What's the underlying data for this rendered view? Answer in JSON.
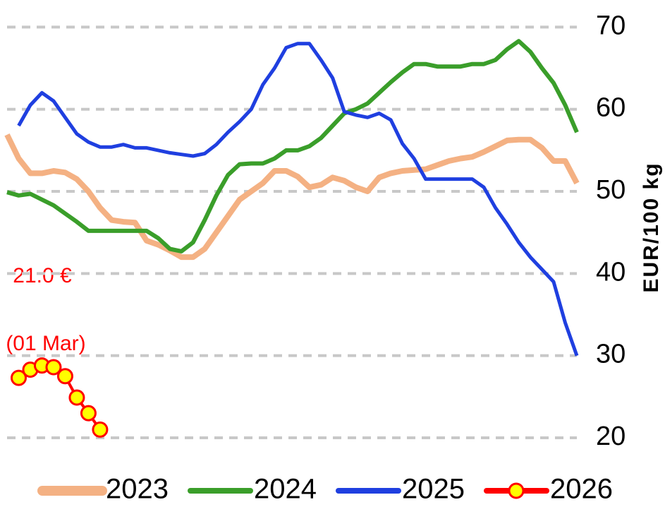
{
  "chart_data": {
    "type": "line",
    "y_label": "EUR/100 kg",
    "categories": [
      null,
      null,
      null,
      null,
      null,
      null,
      null,
      null,
      null,
      null,
      null,
      null,
      null,
      null,
      null,
      null,
      null,
      null,
      null,
      null,
      null,
      null,
      null,
      null,
      null,
      null,
      null,
      null,
      null,
      null,
      null,
      null,
      null,
      null,
      null,
      null,
      null,
      null,
      null,
      null,
      null,
      null,
      null,
      null,
      null,
      null,
      null,
      null,
      null,
      null
    ],
    "ylim": [
      20,
      73.3
    ],
    "yticks": [
      20,
      30,
      40,
      50,
      60,
      70
    ],
    "grid": true,
    "legend": "bottom",
    "annotations": [
      "21.0 €",
      "(01 Mar)"
    ],
    "series": [
      {
        "name": "2023",
        "color": "#f4b183",
        "values": [
          56.9,
          54,
          52.2,
          52.2,
          52.5,
          52.3,
          51.5,
          50,
          48,
          46.5,
          46.3,
          46.2,
          44,
          43.5,
          42.8,
          42,
          42,
          43,
          45,
          47,
          49,
          50,
          51,
          52.5,
          52.5,
          51.8,
          50.5,
          50.8,
          51.7,
          51.3,
          50.5,
          50,
          51.7,
          52.2,
          52.5,
          52.6,
          52.7,
          53.2,
          53.7,
          54,
          54.2,
          54.8,
          55.5,
          56.2,
          56.3,
          56.3,
          55.3,
          53.7,
          53.7,
          51
        ]
      },
      {
        "name": "2024",
        "color": "#3a9e2a",
        "values": [
          49.9,
          49.5,
          49.7,
          49,
          48.3,
          47.3,
          46.3,
          45.2,
          45.2,
          45.2,
          45.2,
          45.2,
          45.2,
          44.3,
          43,
          42.7,
          43.8,
          46.5,
          49.5,
          52,
          53.3,
          53.4,
          53.4,
          54,
          55,
          55,
          55.5,
          56.5,
          58,
          59.5,
          60,
          60.7,
          62,
          63.3,
          64.5,
          65.5,
          65.5,
          65.2,
          65.2,
          65.2,
          65.5,
          65.5,
          66,
          67.3,
          68.3,
          67,
          65,
          63.2,
          60.5,
          57.2
        ]
      },
      {
        "name": "2025",
        "color": "#1f3fe0",
        "values": [
          null,
          58,
          60.5,
          62,
          61,
          59,
          57,
          56,
          55.4,
          55.4,
          55.7,
          55.3,
          55.3,
          55,
          54.7,
          54.5,
          54.3,
          54.6,
          55.7,
          57.2,
          58.5,
          60,
          63,
          65,
          67.5,
          68,
          68,
          66,
          63.8,
          59.7,
          59.3,
          59,
          59.5,
          58.7,
          55.8,
          54,
          51.5,
          51.5,
          51.5,
          51.5,
          51.5,
          50.5,
          48,
          46,
          43.8,
          42,
          40.5,
          39,
          34,
          30
        ]
      },
      {
        "name": "2026",
        "color": "#ff0000",
        "marker_color": "#ffff00",
        "values": [
          null,
          27.3,
          28.3,
          28.8,
          28.6,
          27.5,
          24.9,
          23,
          21.0,
          null,
          null,
          null,
          null,
          null,
          null,
          null,
          null,
          null,
          null,
          null,
          null,
          null,
          null,
          null,
          null,
          null,
          null,
          null,
          null,
          null,
          null,
          null,
          null,
          null,
          null,
          null,
          null,
          null,
          null,
          null,
          null,
          null,
          null,
          null,
          null,
          null,
          null,
          null,
          null,
          null
        ]
      }
    ]
  }
}
